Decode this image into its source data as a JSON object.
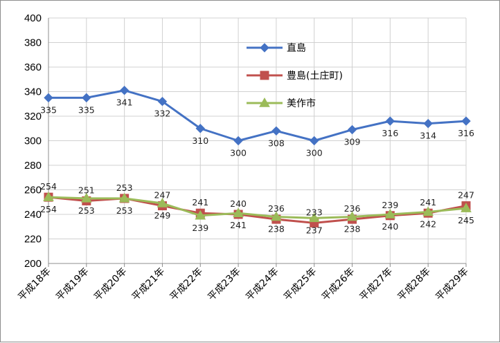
{
  "chart_data": {
    "type": "line",
    "categories": [
      "平成18年",
      "平成19年",
      "平成20年",
      "平成21年",
      "平成22年",
      "平成23年",
      "平成24年",
      "平成25年",
      "平成26年",
      "平成27年",
      "平成28年",
      "平成29年"
    ],
    "ylim": [
      200,
      400
    ],
    "yticks": [
      200,
      220,
      240,
      260,
      280,
      300,
      320,
      340,
      360,
      380,
      400
    ],
    "grid": true,
    "legend_position": "top-center",
    "series": [
      {
        "name": "直島",
        "values": [
          335,
          335,
          341,
          332,
          310,
          300,
          308,
          300,
          309,
          316,
          314,
          316
        ],
        "color": "#4472c4",
        "marker": "diamond",
        "label_position": [
          "below",
          "below",
          "below",
          "below",
          "below",
          "below",
          "below",
          "below",
          "below",
          "below",
          "below",
          "below"
        ]
      },
      {
        "name": "豊島(土庄町)",
        "values": [
          254,
          251,
          253,
          247,
          241,
          240,
          236,
          233,
          236,
          239,
          241,
          247
        ],
        "color": "#c0504d",
        "marker": "square",
        "label_position": [
          "above",
          "above",
          "above",
          "above",
          "above",
          "above",
          "above",
          "above",
          "above",
          "above",
          "above",
          "above"
        ]
      },
      {
        "name": "美作市",
        "values": [
          254,
          253,
          253,
          249,
          239,
          241,
          238,
          237,
          238,
          240,
          242,
          245
        ],
        "color": "#9bbb59",
        "marker": "triangle",
        "label_position": [
          "below",
          "below",
          "below",
          "below",
          "below",
          "below",
          "below",
          "below",
          "below",
          "below",
          "below",
          "below"
        ]
      }
    ]
  }
}
